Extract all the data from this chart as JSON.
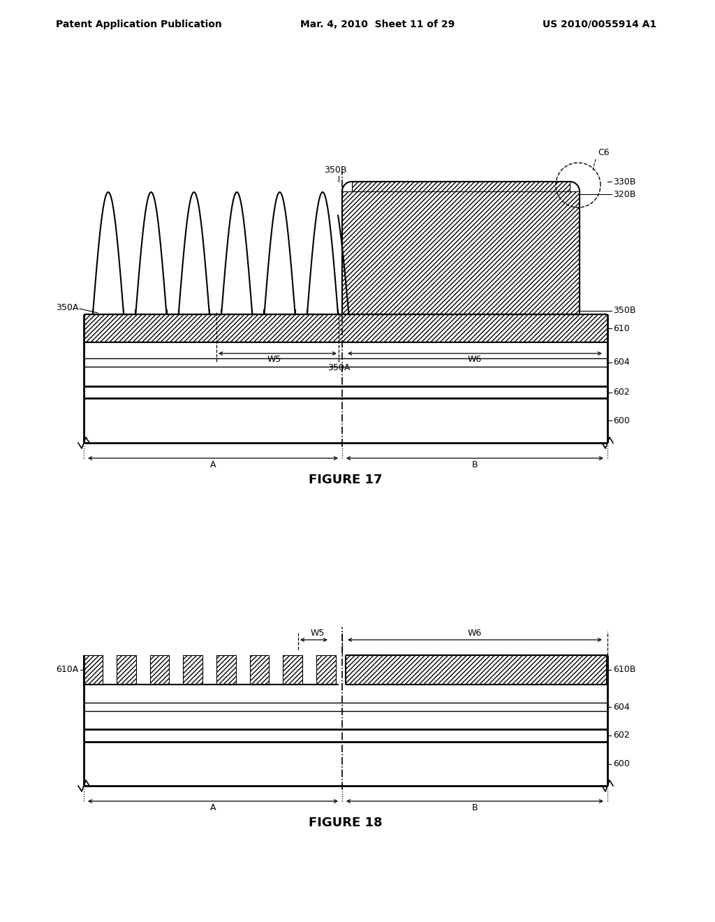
{
  "header_left": "Patent Application Publication",
  "header_center": "Mar. 4, 2010  Sheet 11 of 29",
  "header_right": "US 2010/0055914 A1",
  "fig17_title": "FIGURE 17",
  "fig18_title": "FIGURE 18",
  "bg_color": "#ffffff",
  "line_color": "#000000"
}
